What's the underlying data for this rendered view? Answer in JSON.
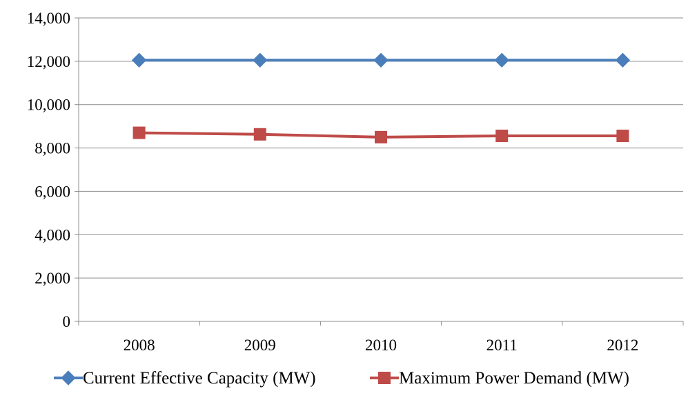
{
  "chart_data": {
    "type": "line",
    "title": "",
    "xlabel": "",
    "ylabel": "",
    "categories": [
      "2008",
      "2009",
      "2010",
      "2011",
      "2012"
    ],
    "ylim": [
      0,
      14000
    ],
    "yticks": [
      0,
      2000,
      4000,
      6000,
      8000,
      10000,
      12000,
      14000
    ],
    "ytick_labels": [
      "0",
      "2,000",
      "4,000",
      "6,000",
      "8,000",
      "10,000",
      "12,000",
      "14,000"
    ],
    "grid": true,
    "legend_position": "bottom",
    "series": [
      {
        "name": "Current Effective Capacity (MW)",
        "color": "#4a7ebb",
        "marker": "diamond",
        "values": [
          12050,
          12050,
          12050,
          12050,
          12050
        ]
      },
      {
        "name": "Maximum Power Demand (MW)",
        "color": "#be4b48",
        "marker": "square",
        "values": [
          8700,
          8630,
          8500,
          8560,
          8560
        ]
      }
    ]
  }
}
